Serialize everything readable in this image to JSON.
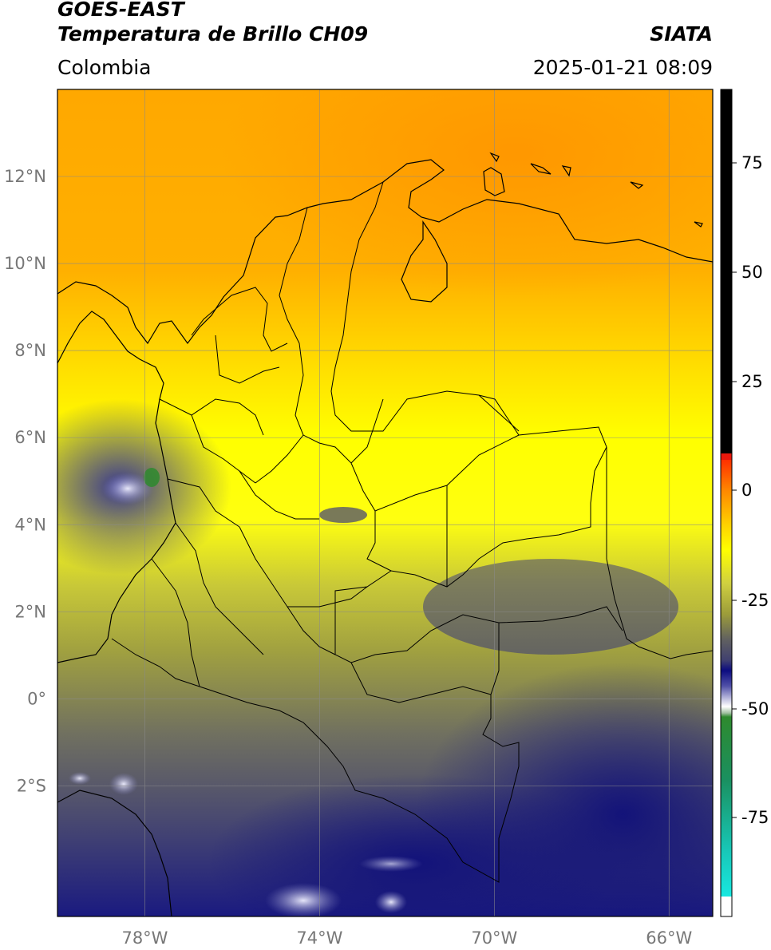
{
  "header": {
    "satellite": "GOES-EAST",
    "product": "Temperatura de Brillo CH09",
    "org": "SIATA",
    "region": "Colombia",
    "timestamp": "2025-01-21 08:09"
  },
  "map": {
    "lon_range": [
      -80,
      -65
    ],
    "lat_range": [
      -5,
      14
    ],
    "lat_ticks": [
      {
        "value": 12,
        "label": "12°N"
      },
      {
        "value": 10,
        "label": "10°N"
      },
      {
        "value": 8,
        "label": "8°N"
      },
      {
        "value": 6,
        "label": "6°N"
      },
      {
        "value": 4,
        "label": "4°N"
      },
      {
        "value": 2,
        "label": "2°N"
      },
      {
        "value": 0,
        "label": "0°"
      },
      {
        "value": -2,
        "label": "2°S"
      }
    ],
    "lon_ticks": [
      {
        "value": -78,
        "label": "78°W"
      },
      {
        "value": -74,
        "label": "74°W"
      },
      {
        "value": -70,
        "label": "70°W"
      },
      {
        "value": -66,
        "label": "66°W"
      }
    ],
    "grid": true
  },
  "colorbar": {
    "ticks": [
      {
        "value": 75,
        "label": "75"
      },
      {
        "value": 50,
        "label": "50"
      },
      {
        "value": 25,
        "label": "25"
      },
      {
        "value": 0,
        "label": "0"
      },
      {
        "value": -25,
        "label": "-25"
      },
      {
        "value": -50,
        "label": "-50"
      },
      {
        "value": -75,
        "label": "-75"
      }
    ],
    "colors": {
      "black": "#000000",
      "red": "#e8180c",
      "orange": "#ff9a00",
      "yellow": "#ffff00",
      "olive": "#9c9c3a",
      "gray": "#606060",
      "navy": "#0c0c80",
      "white": "#ffffff",
      "green": "#2e8a2e",
      "cyan": "#18e8e0"
    }
  }
}
